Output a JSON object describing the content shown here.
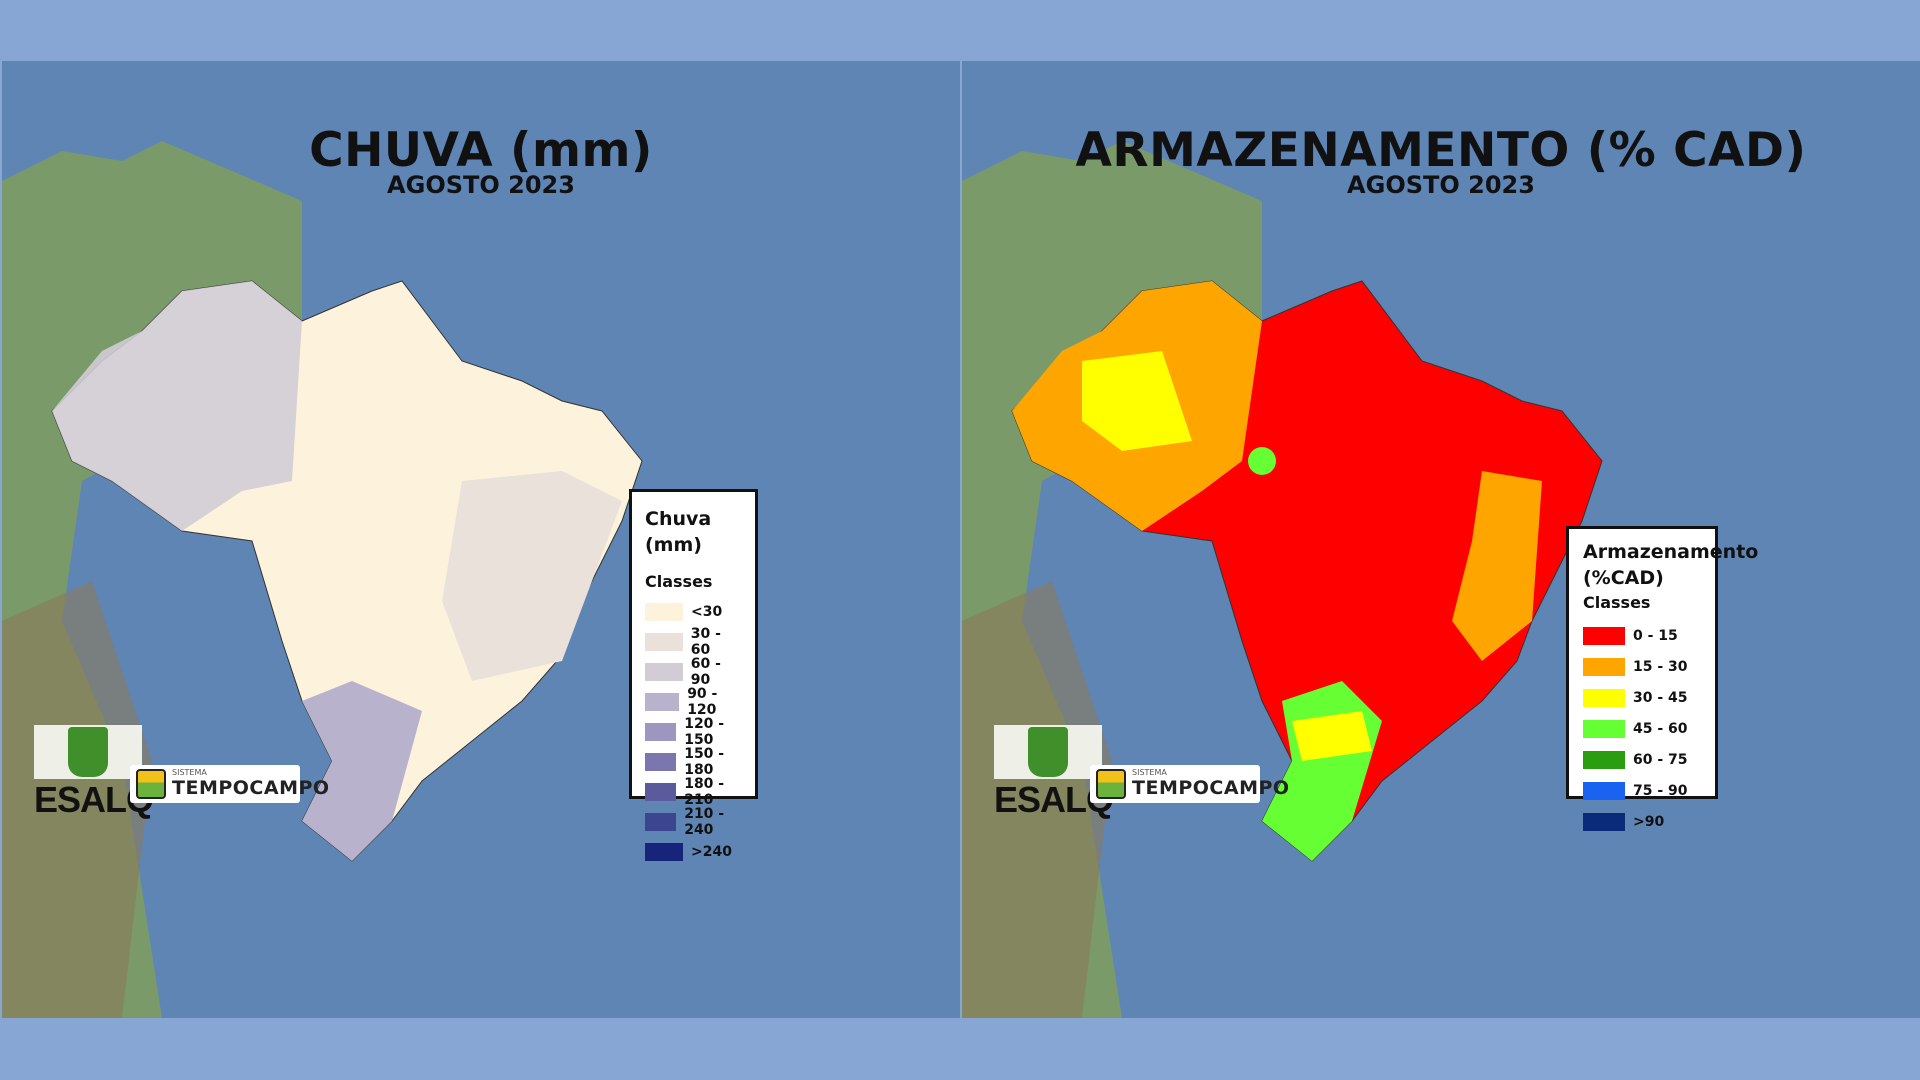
{
  "left_panel": {
    "title": "CHUVA (mm)",
    "subtitle": "AGOSTO 2023",
    "legend": {
      "title": "Chuva (mm)",
      "classes_label": "Classes",
      "items": [
        {
          "label": "<30",
          "color": "#fdf3dc"
        },
        {
          "label": "30 - 60",
          "color": "#e9e1da"
        },
        {
          "label": "60 - 90",
          "color": "#d2ccd6"
        },
        {
          "label": "90 - 120",
          "color": "#b8b2cc"
        },
        {
          "label": "120 - 150",
          "color": "#9d97bf"
        },
        {
          "label": "150 - 180",
          "color": "#7b77ae"
        },
        {
          "label": "180 - 210",
          "color": "#5a5a9d"
        },
        {
          "label": "210 - 240",
          "color": "#3c4590"
        },
        {
          "label": ">240",
          "color": "#16247a"
        }
      ]
    }
  },
  "right_panel": {
    "title": "ARMAZENAMENTO (% CAD)",
    "subtitle": "AGOSTO 2023",
    "legend": {
      "title_line1": "Armazenamento",
      "title_line2": "(%CAD)",
      "classes_label": "Classes",
      "items": [
        {
          "label": "0 - 15",
          "color": "#ff0000"
        },
        {
          "label": "15 - 30",
          "color": "#ffa500"
        },
        {
          "label": "30 - 45",
          "color": "#ffff00"
        },
        {
          "label": "45 - 60",
          "color": "#66ff33"
        },
        {
          "label": "60 - 75",
          "color": "#2a9e10"
        },
        {
          "label": "75 - 90",
          "color": "#1a63f0"
        },
        {
          "label": ">90",
          "color": "#0a2a7a"
        }
      ]
    }
  },
  "logos": {
    "esalq": "ESALQ",
    "sistema": "SISTEMA",
    "tempocampo": "TEMPOCAMPO"
  },
  "colors": {
    "frame": "#87a6d3",
    "ocean": "#5f85b5",
    "land": "#7a9a6a"
  }
}
